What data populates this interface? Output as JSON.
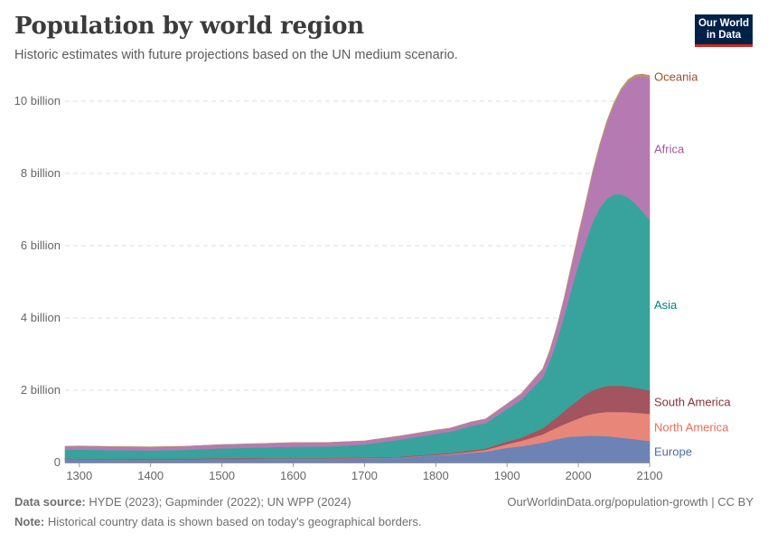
{
  "header": {
    "title": "Population by world region",
    "subtitle": "Historic estimates with future projections based on the UN medium scenario."
  },
  "logo": {
    "line1": "Our World",
    "line2": "in Data"
  },
  "footer": {
    "source_label": "Data source:",
    "source_text": "HYDE (2023); Gapminder (2022); UN WPP (2024)",
    "note_label": "Note:",
    "note_text": "Historical country data is shown based on today's geographical borders.",
    "link": "OurWorldinData.org/population-growth | CC BY"
  },
  "chart_data": {
    "type": "area",
    "stacked": true,
    "title": "Population by world region",
    "subtitle": "Historic estimates with future projections based on the UN medium scenario.",
    "x": [
      1280,
      1300,
      1350,
      1400,
      1450,
      1500,
      1550,
      1600,
      1650,
      1700,
      1750,
      1800,
      1820,
      1850,
      1870,
      1900,
      1920,
      1950,
      1960,
      1970,
      1980,
      1990,
      2000,
      2010,
      2020,
      2030,
      2040,
      2050,
      2060,
      2070,
      2080,
      2090,
      2100
    ],
    "xlim": [
      1280,
      2100
    ],
    "ylim": [
      0,
      10500000000
    ],
    "x_ticks": [
      1300,
      1400,
      1500,
      1600,
      1700,
      1800,
      1900,
      2000,
      2100
    ],
    "x_tick_labels": [
      "1300",
      "1400",
      "1500",
      "1600",
      "1700",
      "1800",
      "1900",
      "2000",
      "2100"
    ],
    "y_ticks": [
      0,
      2000000000,
      4000000000,
      6000000000,
      8000000000,
      10000000000
    ],
    "y_tick_labels": [
      "0",
      "2 billion",
      "4 billion",
      "6 billion",
      "8 billion",
      "10 billion"
    ],
    "grid": "horizontal dashed",
    "legend": "inline labels at right end",
    "series": [
      {
        "name": "Europe",
        "color": "#6d83b5",
        "label_color": "#4c6a9c",
        "values": [
          90000000,
          85000000,
          80000000,
          75000000,
          80000000,
          90000000,
          95000000,
          100000000,
          105000000,
          120000000,
          140000000,
          200000000,
          220000000,
          270000000,
          300000000,
          410000000,
          450000000,
          550000000,
          600000000,
          650000000,
          690000000,
          720000000,
          727000000,
          738000000,
          745000000,
          740000000,
          730000000,
          710000000,
          690000000,
          670000000,
          645000000,
          620000000,
          600000000
        ]
      },
      {
        "name": "North America",
        "color": "#e8867a",
        "label_color": "#e56e5a",
        "values": [
          5000000,
          5000000,
          5000000,
          5000000,
          5000000,
          5000000,
          5000000,
          5000000,
          4000000,
          4000000,
          5000000,
          10000000,
          20000000,
          30000000,
          50000000,
          100000000,
          150000000,
          230000000,
          280000000,
          320000000,
          370000000,
          420000000,
          490000000,
          560000000,
          600000000,
          640000000,
          670000000,
          690000000,
          710000000,
          725000000,
          735000000,
          742000000,
          748000000
        ]
      },
      {
        "name": "South America",
        "color": "#a2545f",
        "label_color": "#883039",
        "values": [
          20000000,
          20000000,
          20000000,
          25000000,
          25000000,
          30000000,
          25000000,
          15000000,
          15000000,
          15000000,
          20000000,
          25000000,
          30000000,
          35000000,
          40000000,
          70000000,
          90000000,
          170000000,
          220000000,
          280000000,
          360000000,
          440000000,
          520000000,
          590000000,
          650000000,
          690000000,
          720000000,
          730000000,
          725000000,
          710000000,
          690000000,
          670000000,
          650000000
        ]
      },
      {
        "name": "Asia",
        "color": "#38a39c",
        "label_color": "#00847e",
        "values": [
          240000000,
          250000000,
          240000000,
          230000000,
          240000000,
          270000000,
          290000000,
          320000000,
          320000000,
          360000000,
          470000000,
          560000000,
          580000000,
          680000000,
          700000000,
          900000000,
          1050000000,
          1400000000,
          1700000000,
          2130000000,
          2630000000,
          3200000000,
          3740000000,
          4210000000,
          4660000000,
          4980000000,
          5180000000,
          5290000000,
          5300000000,
          5230000000,
          5100000000,
          4920000000,
          4720000000
        ]
      },
      {
        "name": "Africa",
        "color": "#b67ab2",
        "label_color": "#a2559c",
        "values": [
          90000000,
          95000000,
          95000000,
          95000000,
          100000000,
          100000000,
          105000000,
          110000000,
          110000000,
          100000000,
          100000000,
          100000000,
          100000000,
          110000000,
          115000000,
          140000000,
          160000000,
          230000000,
          290000000,
          370000000,
          480000000,
          630000000,
          820000000,
          1040000000,
          1360000000,
          1710000000,
          2100000000,
          2480000000,
          2860000000,
          3200000000,
          3490000000,
          3730000000,
          3920000000
        ]
      },
      {
        "name": "Oceania",
        "color": "#b8946f",
        "label_color": "#9a5129",
        "values": [
          2000000,
          2000000,
          2000000,
          2000000,
          2000000,
          2000000,
          2000000,
          2000000,
          2000000,
          2000000,
          2000000,
          2000000,
          2000000,
          3000000,
          3000000,
          6000000,
          9000000,
          13000000,
          16000000,
          20000000,
          23000000,
          27000000,
          31000000,
          37000000,
          43000000,
          49000000,
          54000000,
          58000000,
          62000000,
          65000000,
          68000000,
          70000000,
          72000000
        ]
      }
    ]
  }
}
